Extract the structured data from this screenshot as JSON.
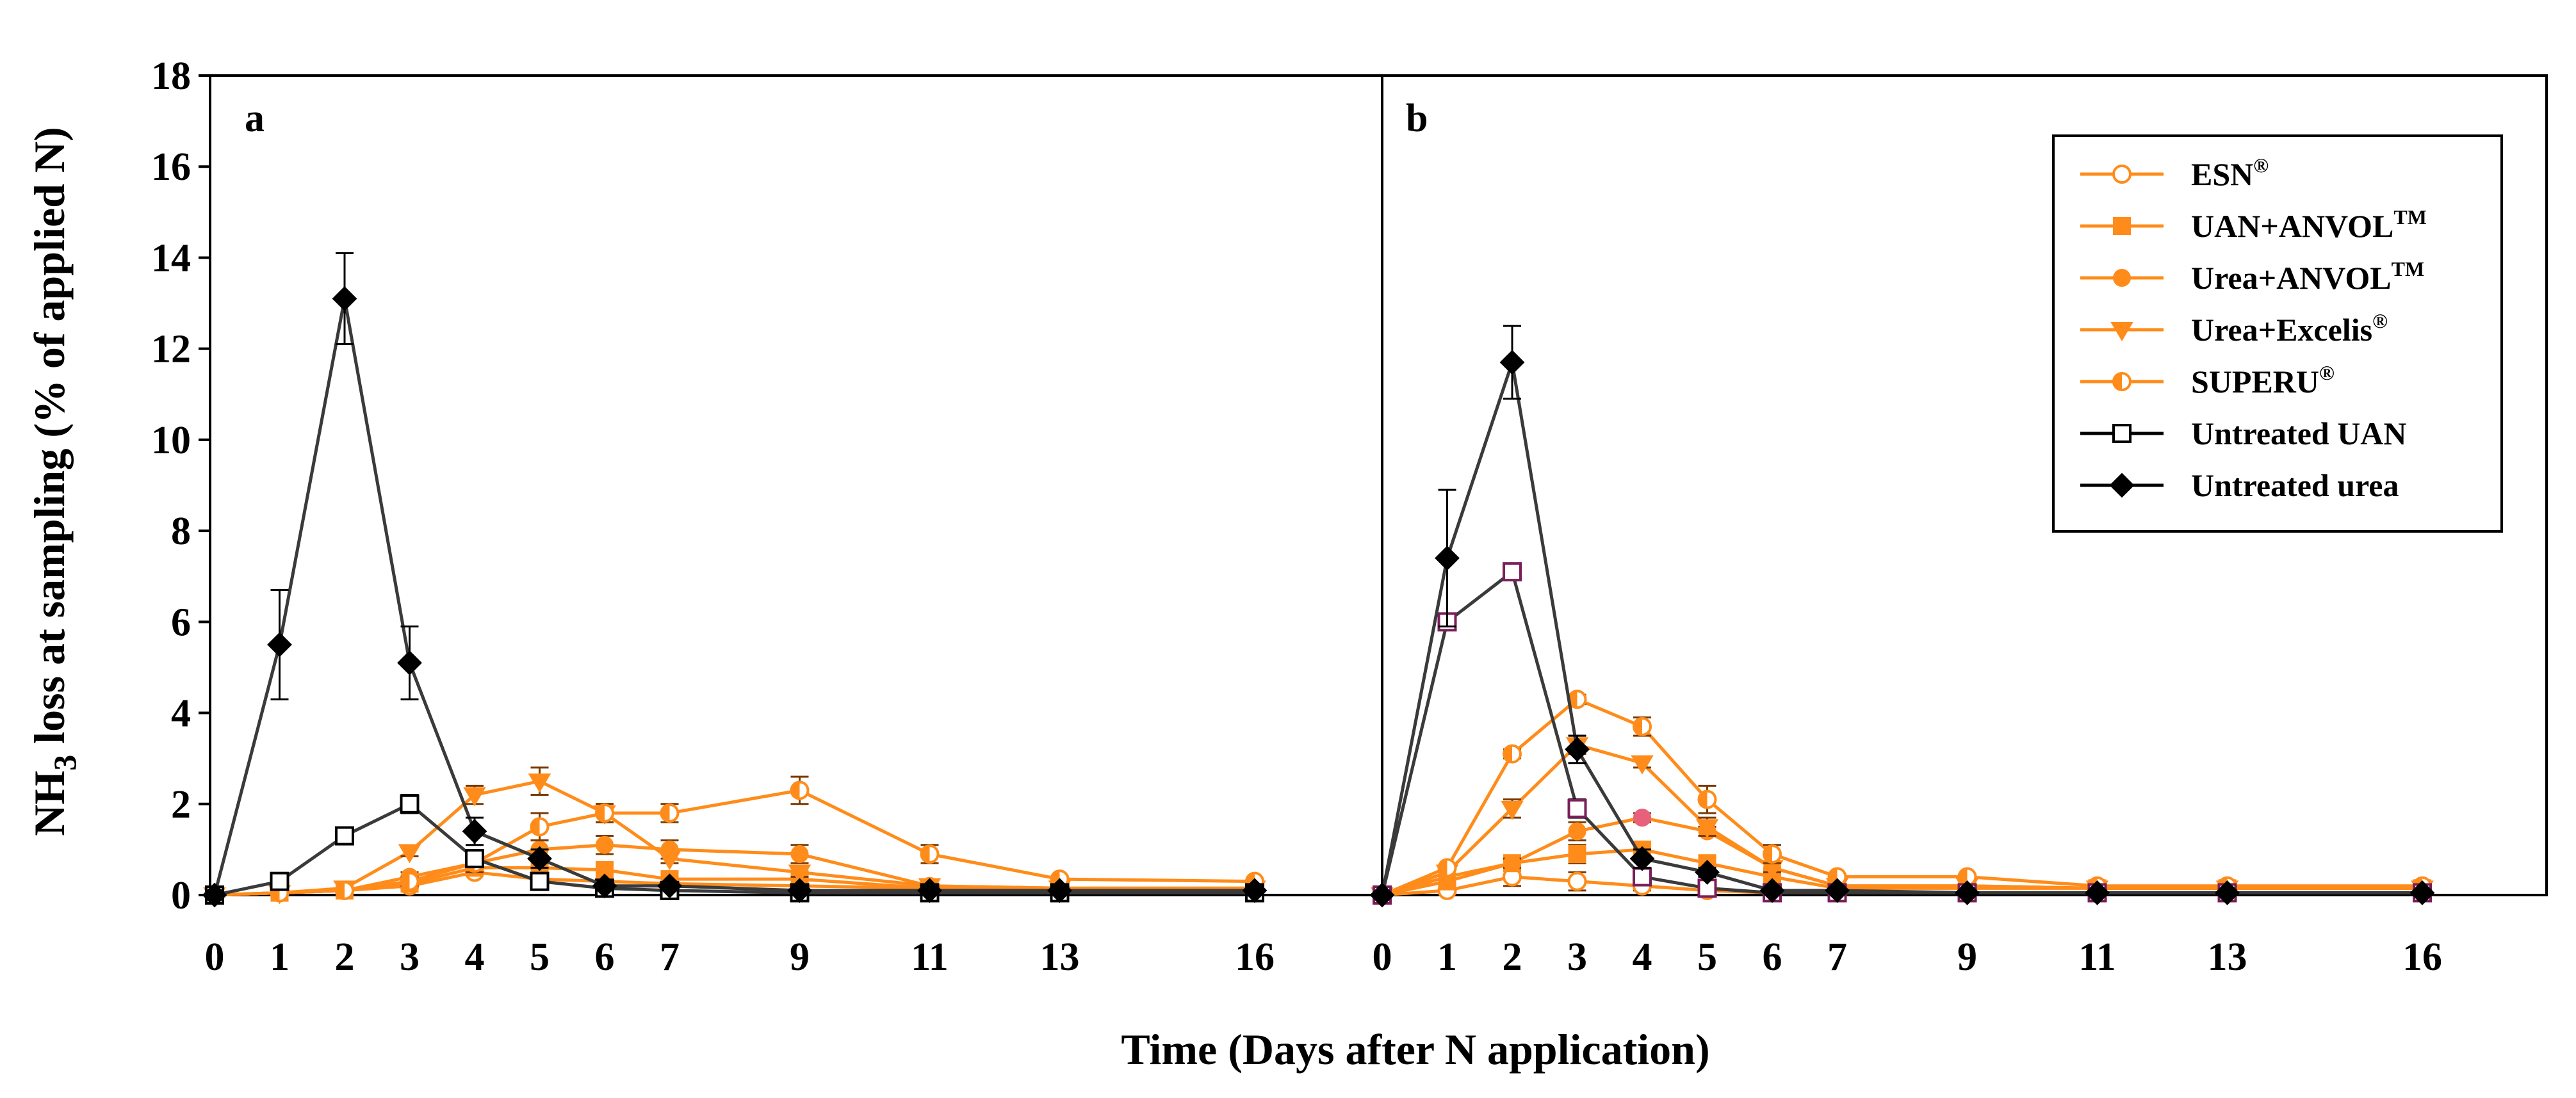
{
  "chart_data": {
    "type": "line",
    "ylabel": {
      "prefix": "NH",
      "sub": "3",
      "suffix": " loss at sampling (% of applied N)"
    },
    "xlabel": "Time (Days after N application)",
    "ylim": [
      0,
      18
    ],
    "yticks": [
      0,
      2,
      4,
      6,
      8,
      10,
      12,
      14,
      16,
      18
    ],
    "x_ticks": [
      0,
      1,
      2,
      3,
      4,
      5,
      6,
      7,
      9,
      11,
      13,
      16
    ],
    "x_range": [
      0,
      17.5
    ],
    "grid": false,
    "legend_position": "top-right of panel b",
    "colors": {
      "treated": "#ff8c1a",
      "untreated_line": "#3a3a3a",
      "untreated_marker": "#000000",
      "b_uan_marker": "#7b1e5a",
      "b_accent_dot": "#e8607a"
    },
    "legend": [
      {
        "base": "ESN",
        "sup": "®",
        "marker": "circle-open",
        "color": "#ff8c1a"
      },
      {
        "base": "UAN+ANVOL",
        "sup": "TM",
        "marker": "square-filled",
        "color": "#ff8c1a"
      },
      {
        "base": "Urea+ANVOL",
        "sup": "TM",
        "marker": "circle-filled",
        "color": "#ff8c1a"
      },
      {
        "base": "Urea+Excelis",
        "sup": "®",
        "marker": "triangle-down",
        "color": "#ff8c1a"
      },
      {
        "base": "SUPERU",
        "sup": "®",
        "marker": "circle-half",
        "color": "#ff8c1a"
      },
      {
        "base": "Untreated UAN",
        "sup": "",
        "marker": "square-open",
        "color": "#000000"
      },
      {
        "base": "Untreated urea",
        "sup": "",
        "marker": "diamond-filled",
        "color": "#000000"
      }
    ],
    "panels": [
      {
        "label": "a",
        "series": [
          {
            "name": "ESN",
            "x": [
              0,
              1,
              2,
              3,
              4,
              5,
              6,
              7,
              9,
              11,
              13,
              16
            ],
            "y": [
              0,
              0.05,
              0.1,
              0.2,
              0.5,
              0.35,
              0.3,
              0.25,
              0.2,
              0.15,
              0.15,
              0.15
            ],
            "err": [
              0,
              0,
              0,
              0,
              0,
              0,
              0,
              0,
              0,
              0,
              0,
              0
            ]
          },
          {
            "name": "UAN+ANVOL",
            "x": [
              0,
              1,
              2,
              3,
              4,
              5,
              6,
              7,
              9,
              11,
              13,
              16
            ],
            "y": [
              0,
              0.05,
              0.1,
              0.25,
              0.6,
              0.6,
              0.55,
              0.35,
              0.35,
              0.15,
              0.15,
              0.15
            ],
            "err": [
              0,
              0,
              0,
              0,
              0.1,
              0.1,
              0.1,
              0,
              0,
              0,
              0,
              0
            ]
          },
          {
            "name": "Urea+ANVOL",
            "x": [
              0,
              1,
              2,
              3,
              4,
              5,
              6,
              7,
              9,
              11,
              13,
              16
            ],
            "y": [
              0,
              0.05,
              0.1,
              0.4,
              0.7,
              1.0,
              1.1,
              1.0,
              0.9,
              0.2,
              0.15,
              0.15
            ],
            "err": [
              0,
              0,
              0,
              0.1,
              0.2,
              0.2,
              0.2,
              0.2,
              0.2,
              0,
              0,
              0
            ]
          },
          {
            "name": "Urea+Excelis",
            "x": [
              0,
              1,
              2,
              3,
              4,
              5,
              6,
              7,
              9,
              11,
              13,
              16
            ],
            "y": [
              0,
              0.05,
              0.15,
              0.95,
              2.2,
              2.5,
              1.8,
              0.8,
              0.5,
              0.2,
              0.15,
              0.15
            ],
            "err": [
              0,
              0,
              0,
              0.1,
              0.2,
              0.3,
              0.2,
              0.1,
              0.1,
              0,
              0,
              0
            ]
          },
          {
            "name": "SUPERU",
            "x": [
              0,
              1,
              2,
              3,
              4,
              5,
              6,
              7,
              9,
              11,
              13,
              16
            ],
            "y": [
              0,
              0.05,
              0.1,
              0.3,
              0.7,
              1.5,
              1.8,
              1.8,
              2.3,
              0.9,
              0.35,
              0.3
            ],
            "err": [
              0,
              0,
              0,
              0.1,
              0.2,
              0.3,
              0.2,
              0.2,
              0.3,
              0.2,
              0,
              0
            ]
          },
          {
            "name": "Untreated UAN",
            "x": [
              0,
              1,
              2,
              3,
              4,
              5,
              6,
              7,
              9,
              11,
              13,
              16
            ],
            "y": [
              0,
              0.3,
              1.3,
              2.0,
              0.8,
              0.3,
              0.15,
              0.1,
              0.05,
              0.05,
              0.05,
              0.05
            ],
            "err": [
              0,
              0,
              0.1,
              0.2,
              0.1,
              0,
              0,
              0,
              0,
              0,
              0,
              0
            ]
          },
          {
            "name": "Untreated urea",
            "x": [
              0,
              1,
              2,
              3,
              4,
              5,
              6,
              7,
              9,
              11,
              13,
              16
            ],
            "y": [
              0,
              5.5,
              13.1,
              5.1,
              1.4,
              0.8,
              0.2,
              0.2,
              0.1,
              0.1,
              0.1,
              0.1
            ],
            "err": [
              0,
              1.2,
              1.0,
              0.8,
              0.3,
              0.2,
              0,
              0,
              0,
              0,
              0,
              0
            ]
          }
        ]
      },
      {
        "label": "b",
        "series": [
          {
            "name": "ESN",
            "x": [
              0,
              1,
              2,
              3,
              4,
              5,
              6,
              7,
              9,
              11,
              13,
              16
            ],
            "y": [
              0,
              0.1,
              0.4,
              0.3,
              0.2,
              0.1,
              0.05,
              0.05,
              0.05,
              0.05,
              0.05,
              0.05
            ],
            "err": [
              0,
              0,
              0.2,
              0.2,
              0.1,
              0,
              0,
              0,
              0,
              0,
              0,
              0
            ]
          },
          {
            "name": "UAN+ANVOL",
            "x": [
              0,
              1,
              2,
              3,
              4,
              5,
              6,
              7,
              9,
              11,
              13,
              16
            ],
            "y": [
              0,
              0.3,
              0.7,
              0.9,
              1.0,
              0.7,
              0.4,
              0.15,
              0.15,
              0.15,
              0.15,
              0.15
            ],
            "err": [
              0,
              0,
              0.1,
              0.2,
              0.1,
              0.1,
              0,
              0,
              0,
              0,
              0,
              0
            ]
          },
          {
            "name": "Urea+ANVOL",
            "x": [
              0,
              1,
              2,
              3,
              4,
              5,
              6,
              7,
              9,
              11,
              13,
              16
            ],
            "y": [
              0,
              0.4,
              0.7,
              1.4,
              1.7,
              1.4,
              0.6,
              0.2,
              0.2,
              0.15,
              0.15,
              0.15
            ],
            "err": [
              0,
              0,
              0.1,
              0.2,
              0.1,
              0.1,
              0.1,
              0,
              0,
              0,
              0,
              0
            ]
          },
          {
            "name": "Urea+Excelis",
            "x": [
              0,
              1,
              2,
              3,
              4,
              5,
              6,
              7,
              9,
              11,
              13,
              16
            ],
            "y": [
              0,
              0.5,
              1.9,
              3.3,
              2.9,
              1.5,
              0.6,
              0.2,
              0.2,
              0.15,
              0.15,
              0.15
            ],
            "err": [
              0,
              0,
              0.2,
              0.2,
              0.1,
              0.2,
              0.1,
              0,
              0,
              0,
              0,
              0
            ]
          },
          {
            "name": "SUPERU",
            "x": [
              0,
              1,
              2,
              3,
              4,
              5,
              6,
              7,
              9,
              11,
              13,
              16
            ],
            "y": [
              0,
              0.6,
              3.1,
              4.3,
              3.7,
              2.1,
              0.9,
              0.4,
              0.4,
              0.2,
              0.2,
              0.2
            ],
            "err": [
              0,
              0,
              0.1,
              0.1,
              0.2,
              0.3,
              0.2,
              0,
              0,
              0,
              0,
              0
            ]
          },
          {
            "name": "Untreated UAN",
            "x": [
              0,
              1,
              2,
              3,
              4,
              5,
              6,
              7,
              9,
              11,
              13,
              16
            ],
            "y": [
              0,
              6.0,
              7.1,
              1.9,
              0.4,
              0.15,
              0.05,
              0.05,
              0.05,
              0.05,
              0.05,
              0.05
            ],
            "err": [
              0,
              0.1,
              0.1,
              0.2,
              0,
              0,
              0,
              0,
              0,
              0,
              0,
              0
            ]
          },
          {
            "name": "Untreated urea",
            "x": [
              0,
              1,
              2,
              3,
              4,
              5,
              6,
              7,
              9,
              11,
              13,
              16
            ],
            "y": [
              0,
              7.4,
              11.7,
              3.2,
              0.8,
              0.5,
              0.1,
              0.1,
              0.05,
              0.05,
              0.05,
              0.05
            ],
            "err": [
              0,
              1.5,
              0.8,
              0.3,
              0.2,
              0.1,
              0,
              0,
              0,
              0,
              0,
              0
            ]
          }
        ]
      }
    ]
  }
}
